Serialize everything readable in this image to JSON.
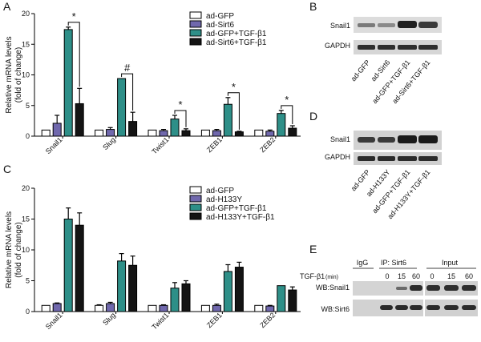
{
  "figure": {
    "panel_labels": {
      "A": "A",
      "B": "B",
      "C": "C",
      "D": "D",
      "E": "E"
    }
  },
  "colors": {
    "ad_gfp": "#ffffff",
    "ad_sirt6": "#7068ad",
    "ad_gfp_tgf": "#2e8f88",
    "ad_sirt6_tgf": "#141414",
    "axis": "#000000",
    "blot_bg": "#d9d9d9",
    "band": "#2b2b2b"
  },
  "chart_data": [
    {
      "panel": "A",
      "type": "bar",
      "title": "",
      "ylabel_line1": "Relative mRNA levels",
      "ylabel_line2": "(fold of change)",
      "ylim": [
        0,
        20
      ],
      "yticks": [
        "0",
        "5",
        "10",
        "15",
        "20"
      ],
      "categories": [
        "Snail1",
        "Slug",
        "Twist1",
        "ZEB1",
        "ZEB2"
      ],
      "series": [
        {
          "name": "ad-GFP",
          "values": [
            1,
            1,
            1,
            1,
            1
          ],
          "errors": [
            0,
            0,
            0,
            0,
            0
          ]
        },
        {
          "name": "ad-Sirt6",
          "values": [
            2.1,
            1.1,
            0.9,
            0.9,
            0.8
          ],
          "errors": [
            1.3,
            0.3,
            0.2,
            0.2,
            0.2
          ]
        },
        {
          "name": "ad-GFP+TGF-β1",
          "values": [
            17.4,
            9.4,
            2.8,
            5.2,
            3.7
          ],
          "errors": [
            0.4,
            0,
            0.6,
            1.1,
            0.5
          ]
        },
        {
          "name": "ad-Sirt6+TGF-β1",
          "values": [
            5.3,
            2.4,
            0.9,
            0.7,
            1.3
          ],
          "errors": [
            2.5,
            1.5,
            0.3,
            0.1,
            0.4
          ]
        }
      ],
      "significance": [
        {
          "category": 0,
          "label": "*"
        },
        {
          "category": 1,
          "label": "#"
        },
        {
          "category": 2,
          "label": "*"
        },
        {
          "category": 3,
          "label": "*"
        },
        {
          "category": 4,
          "label": "*"
        }
      ],
      "legend_position": "top-right"
    },
    {
      "panel": "C",
      "type": "bar",
      "title": "",
      "ylabel_line1": "Relative mRNA levels",
      "ylabel_line2": "(fold of change)",
      "ylim": [
        0,
        20
      ],
      "yticks": [
        "0",
        "5",
        "10",
        "15",
        "20"
      ],
      "categories": [
        "Snail1",
        "Slug",
        "Twist1",
        "ZEB1",
        "ZEB2"
      ],
      "series": [
        {
          "name": "ad-GFP",
          "values": [
            1,
            1,
            1,
            1,
            1
          ],
          "errors": [
            0,
            0.1,
            0,
            0,
            0
          ]
        },
        {
          "name": "ad-H133Y",
          "values": [
            1.3,
            1.3,
            1,
            1,
            0.9
          ],
          "errors": [
            0.1,
            0.2,
            0.1,
            0.2,
            0.1
          ]
        },
        {
          "name": "ad-GFP+TGF-β1",
          "values": [
            15,
            8.2,
            3.8,
            6.5,
            4.2
          ],
          "errors": [
            1.8,
            1.2,
            0.9,
            1.1,
            0
          ]
        },
        {
          "name": "ad-H133Y+TGF-β1",
          "values": [
            14,
            7.5,
            4.5,
            7.2,
            3.5
          ],
          "errors": [
            2,
            1.5,
            0.5,
            0.8,
            0.5
          ]
        }
      ],
      "significance": [],
      "legend_position": "top-right"
    }
  ],
  "blots": {
    "B": {
      "rows": [
        "Snail1",
        "GAPDH"
      ],
      "lanes": [
        "ad-GFP",
        "ad-Sirt6",
        "ad-GFP+TGF-β1",
        "ad-Sirt6+TGF-β1"
      ]
    },
    "D": {
      "rows": [
        "Snail1",
        "GAPDH"
      ],
      "lanes": [
        "ad-GFP",
        "ad-H133Y",
        "ad-GFP+TGF-β1",
        "ad-H133Y+TGF-β1"
      ]
    },
    "E": {
      "igg": "IgG",
      "ip": "IP: Sirt6",
      "input": "Input",
      "tgf_label": "TGF-β1",
      "tgf_unit": "(min)",
      "times_ip": [
        "0",
        "15",
        "60"
      ],
      "times_input": [
        "0",
        "15",
        "60"
      ],
      "rows": [
        "WB:Snail1",
        "WB:Sirt6"
      ]
    }
  }
}
